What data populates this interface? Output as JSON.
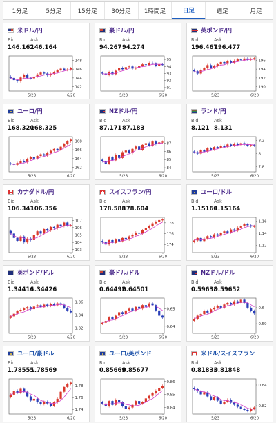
{
  "tabs": [
    {
      "label": "1分足"
    },
    {
      "label": "5分足"
    },
    {
      "label": "15分足"
    },
    {
      "label": "30分足"
    },
    {
      "label": "1時間足"
    },
    {
      "label": "日足"
    },
    {
      "label": "週足"
    },
    {
      "label": "月足"
    }
  ],
  "active_tab": 5,
  "labels": {
    "bid": "Bid",
    "ask": "Ask"
  },
  "colors": {
    "up": "#d9382c",
    "down": "#2a3fb8",
    "ma": "#d23cc7",
    "accent": "#1e5ec0"
  },
  "cards": [
    {
      "pair": "米ドル/円",
      "flag": "us",
      "bid": "146.162",
      "ask": "146.164",
      "x_labels": [
        "5/23",
        "6/20"
      ],
      "y_ticks": [
        "148",
        "146",
        "144",
        "142"
      ],
      "ylim": [
        141,
        149
      ],
      "closes": [
        144.0,
        143.5,
        143.2,
        144.1,
        144.7,
        144.0,
        143.9,
        144.3,
        144.8,
        145.2,
        145.0,
        144.6,
        144.9,
        145.3,
        145.7,
        146.1,
        145.8,
        145.9,
        146.2
      ]
    },
    {
      "pair": "豪ドル/円",
      "flag": "au",
      "bid": "94.267",
      "ask": "94.274",
      "x_labels": [
        "5/23",
        "6/20"
      ],
      "y_ticks": [
        "95",
        "94",
        "93",
        "92",
        "91"
      ],
      "ylim": [
        90.5,
        95.5
      ],
      "closes": [
        93.0,
        92.8,
        93.2,
        92.9,
        93.4,
        93.8,
        93.6,
        93.9,
        94.0,
        93.7,
        93.8,
        94.1,
        94.3,
        94.2,
        94.5,
        94.4,
        94.1,
        94.3,
        94.27
      ]
    },
    {
      "pair": "英ポンド/円",
      "flag": "gb",
      "bid": "196.467",
      "ask": "196.477",
      "x_labels": [
        "5/23",
        "6/20"
      ],
      "y_ticks": [
        "196",
        "194",
        "192",
        "190"
      ],
      "ylim": [
        189,
        197
      ],
      "closes": [
        193.5,
        193.0,
        193.8,
        194.2,
        194.9,
        194.3,
        194.7,
        195.1,
        195.6,
        195.2,
        195.8,
        195.4,
        195.9,
        196.2,
        196.0,
        196.4,
        196.1,
        196.3,
        196.47
      ]
    },
    {
      "pair": "ユーロ/円",
      "flag": "eu",
      "bid": "168.320",
      "ask": "168.325",
      "x_labels": [
        "5/23",
        "6/20"
      ],
      "y_ticks": [
        "168",
        "166",
        "164",
        "162"
      ],
      "ylim": [
        161,
        169
      ],
      "closes": [
        162.8,
        162.6,
        163.0,
        163.5,
        163.2,
        163.9,
        164.3,
        164.0,
        164.6,
        165.0,
        164.7,
        165.3,
        165.8,
        166.2,
        166.0,
        166.7,
        167.3,
        167.9,
        168.32
      ]
    },
    {
      "pair": "NZドル/円",
      "flag": "nz",
      "bid": "87.171",
      "ask": "87.183",
      "x_labels": [
        "5/23",
        "6/20"
      ],
      "y_ticks": [
        "87",
        "86",
        "85",
        "84"
      ],
      "ylim": [
        83.5,
        87.8
      ],
      "closes": [
        84.8,
        84.5,
        85.3,
        84.9,
        85.6,
        85.2,
        85.9,
        86.1,
        85.8,
        86.3,
        86.6,
        86.2,
        86.8,
        87.0,
        86.7,
        87.2,
        86.9,
        87.1,
        87.17
      ]
    },
    {
      "pair": "ランド/円",
      "flag": "za",
      "bid": "8.121",
      "ask": "8.131",
      "x_labels": [
        "5/23",
        "6/20"
      ],
      "y_ticks": [
        "8.2",
        "8",
        "7.8"
      ],
      "ylim": [
        7.72,
        8.26
      ],
      "closes": [
        8.02,
        8.0,
        8.05,
        8.03,
        8.08,
        8.06,
        8.1,
        8.09,
        8.12,
        8.1,
        8.14,
        8.12,
        8.15,
        8.13,
        8.16,
        8.14,
        8.12,
        8.13,
        8.121
      ]
    },
    {
      "pair": "カナダドル/円",
      "flag": "ca",
      "bid": "106.341",
      "ask": "106.356",
      "x_labels": [
        "5/23",
        "6/20"
      ],
      "y_ticks": [
        "107",
        "106",
        "105",
        "104",
        "103"
      ],
      "ylim": [
        102.6,
        107.4
      ],
      "closes": [
        105.2,
        104.6,
        104.2,
        104.8,
        104.0,
        104.5,
        104.3,
        105.0,
        105.5,
        105.2,
        105.8,
        105.6,
        106.1,
        105.9,
        106.4,
        106.2,
        106.7,
        106.3,
        106.34
      ]
    },
    {
      "pair": "スイスフラン/円",
      "flag": "ch",
      "bid": "178.588",
      "ask": "178.604",
      "x_labels": [
        "5/23",
        "6/20"
      ],
      "y_ticks": [
        "178",
        "176",
        "174"
      ],
      "ylim": [
        172.5,
        179
      ],
      "closes": [
        174.4,
        174.0,
        174.8,
        174.3,
        174.9,
        174.6,
        175.2,
        174.9,
        175.5,
        175.8,
        176.2,
        176.0,
        176.6,
        177.0,
        177.4,
        177.9,
        178.2,
        178.5,
        178.59
      ]
    },
    {
      "pair": "ユーロ/ドル",
      "flag": "eu",
      "bid": "1.15160",
      "ask": "1.15164",
      "x_labels": [
        "5/23",
        "6/20"
      ],
      "y_ticks": [
        "1.16",
        "1.14",
        "1.12"
      ],
      "ylim": [
        1.108,
        1.166
      ],
      "closes": [
        1.128,
        1.132,
        1.127,
        1.131,
        1.135,
        1.133,
        1.138,
        1.136,
        1.14,
        1.143,
        1.141,
        1.146,
        1.144,
        1.149,
        1.152,
        1.155,
        1.153,
        1.151,
        1.1516
      ]
    },
    {
      "pair": "英ポンド/ドル",
      "flag": "gb",
      "bid": "1.34416",
      "ask": "1.34426",
      "x_labels": [
        "5/23",
        "6/20"
      ],
      "y_ticks": [
        "1.36",
        "1.34",
        "1.32"
      ],
      "ylim": [
        1.312,
        1.366
      ],
      "closes": [
        1.338,
        1.342,
        1.346,
        1.348,
        1.35,
        1.352,
        1.349,
        1.353,
        1.355,
        1.352,
        1.356,
        1.354,
        1.357,
        1.355,
        1.358,
        1.356,
        1.351,
        1.347,
        1.3442
      ]
    },
    {
      "pair": "豪ドル/ドル",
      "flag": "au",
      "bid": "0.64492",
      "ask": "0.64501",
      "x_labels": [
        "5/23",
        "6/20"
      ],
      "y_ticks": [
        "0.65",
        "0.64"
      ],
      "ylim": [
        0.636,
        0.656
      ],
      "closes": [
        0.642,
        0.643,
        0.645,
        0.644,
        0.646,
        0.648,
        0.647,
        0.649,
        0.65,
        0.649,
        0.651,
        0.65,
        0.652,
        0.651,
        0.653,
        0.652,
        0.649,
        0.646,
        0.6449
      ]
    },
    {
      "pair": "NZドル/ドル",
      "flag": "nz",
      "bid": "0.59638",
      "ask": "0.59652",
      "x_labels": [
        "5/23",
        "6/20"
      ],
      "y_ticks": [
        "0.6",
        "0.59"
      ],
      "ylim": [
        0.584,
        0.606
      ],
      "closes": [
        0.593,
        0.595,
        0.596,
        0.598,
        0.597,
        0.599,
        0.6,
        0.601,
        0.6,
        0.602,
        0.603,
        0.602,
        0.604,
        0.603,
        0.605,
        0.603,
        0.6,
        0.598,
        0.5964
      ]
    },
    {
      "pair": "ユーロ/豪ドル",
      "flag": "eu",
      "bid": "1.78555",
      "ask": "1.78569",
      "x_labels": [
        "5/23",
        "6/20"
      ],
      "y_ticks": [
        "1.78",
        "1.76",
        "1.74"
      ],
      "ylim": [
        1.732,
        1.792
      ],
      "closes": [
        1.765,
        1.772,
        1.768,
        1.775,
        1.77,
        1.762,
        1.755,
        1.758,
        1.752,
        1.749,
        1.753,
        1.75,
        1.746,
        1.752,
        1.758,
        1.77,
        1.778,
        1.783,
        1.7856
      ]
    },
    {
      "pair": "ユーロ/英ポンド",
      "flag": "eu",
      "bid": "0.85669",
      "ask": "0.85677",
      "x_labels": [
        "5/23",
        "6/20"
      ],
      "y_ticks": [
        "0.86",
        "0.85",
        "0.84"
      ],
      "ylim": [
        0.835,
        0.862
      ],
      "closes": [
        0.843,
        0.841,
        0.845,
        0.842,
        0.846,
        0.844,
        0.841,
        0.839,
        0.84,
        0.842,
        0.845,
        0.843,
        0.844,
        0.847,
        0.849,
        0.851,
        0.853,
        0.855,
        0.8567
      ]
    },
    {
      "pair": "米ドル/スイスフラン",
      "flag": "ch",
      "bid": "0.81833",
      "ask": "0.81848",
      "x_labels": [
        "5/23",
        "6/20"
      ],
      "y_ticks": [
        "0.84",
        "0.82"
      ],
      "ylim": [
        0.812,
        0.846
      ],
      "closes": [
        0.836,
        0.834,
        0.831,
        0.833,
        0.829,
        0.826,
        0.828,
        0.825,
        0.822,
        0.824,
        0.826,
        0.823,
        0.821,
        0.819,
        0.817,
        0.816,
        0.815,
        0.817,
        0.8183
      ]
    }
  ]
}
